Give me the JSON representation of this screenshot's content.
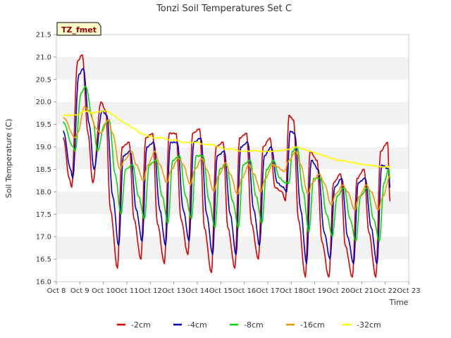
{
  "chart_data": {
    "type": "line",
    "title": "Tonzi Soil Temperatures Set C",
    "xlabel": "Time",
    "ylabel": "Soil Temperature (C)",
    "tag_label": "TZ_fmet",
    "xlim": [
      8,
      23
    ],
    "ylim": [
      16.0,
      21.5
    ],
    "x_ticks": [
      8,
      9,
      10,
      11,
      12,
      13,
      14,
      15,
      16,
      17,
      18,
      19,
      20,
      21,
      22,
      23
    ],
    "x_tick_labels": [
      "Oct 8",
      "Oct 9",
      "Oct 10",
      "Oct 11",
      "Oct 12",
      "Oct 13",
      "Oct 14",
      "Oct 15",
      "Oct 16",
      "Oct 17",
      "Oct 18",
      "Oct 19",
      "Oct 20",
      "Oct 21",
      "Oct 22",
      "Oct 23"
    ],
    "y_ticks": [
      16.0,
      16.5,
      17.0,
      17.5,
      18.0,
      18.5,
      19.0,
      19.5,
      20.0,
      20.5,
      21.0,
      21.5
    ],
    "y_tick_labels": [
      "16.0",
      "16.5",
      "17.0",
      "17.5",
      "18.0",
      "18.5",
      "19.0",
      "19.5",
      "20.0",
      "20.5",
      "21.0",
      "21.5"
    ],
    "grid": "horizontal bands",
    "legend_position": "bottom",
    "series": [
      {
        "name": "-2cm",
        "color": "#dd0000",
        "x": [
          8.3,
          8.55,
          8.65,
          8.9,
          9.1,
          9.35,
          9.55,
          9.9,
          10.1,
          10.3,
          10.6,
          10.8,
          11.1,
          11.3,
          11.6,
          11.8,
          12.1,
          12.3,
          12.6,
          12.8,
          13.1,
          13.3,
          13.6,
          13.8,
          14.1,
          14.3,
          14.6,
          14.8,
          15.1,
          15.3,
          15.6,
          15.8,
          16.1,
          16.3,
          16.6,
          16.8,
          17.1,
          17.3,
          17.6,
          17.75,
          17.9,
          18.1,
          18.3,
          18.6,
          18.8,
          19.1,
          19.3,
          19.6,
          19.8,
          20.1,
          20.3,
          20.6,
          20.8,
          21.1,
          21.3,
          21.6,
          21.8,
          22.1,
          22.2
        ],
        "values": [
          19.2,
          18.3,
          18.1,
          20.9,
          21.05,
          19.3,
          18.2,
          20.0,
          19.8,
          17.6,
          16.3,
          19.0,
          19.1,
          17.4,
          16.5,
          19.2,
          19.3,
          17.3,
          16.4,
          19.3,
          19.3,
          17.4,
          16.6,
          19.3,
          19.4,
          17.2,
          16.2,
          19.0,
          19.1,
          17.2,
          16.3,
          19.2,
          19.3,
          17.3,
          16.5,
          19.0,
          19.2,
          18.1,
          18.0,
          17.8,
          19.7,
          19.6,
          17.4,
          16.1,
          18.9,
          18.7,
          16.9,
          16.1,
          18.2,
          18.4,
          16.8,
          16.1,
          18.3,
          18.5,
          17.1,
          16.1,
          18.9,
          19.1,
          17.8
        ]
      },
      {
        "name": "-4cm",
        "color": "#0000cc",
        "x": [
          8.3,
          8.6,
          8.7,
          8.95,
          9.15,
          9.4,
          9.6,
          9.95,
          10.15,
          10.4,
          10.65,
          10.85,
          11.15,
          11.4,
          11.65,
          11.85,
          12.15,
          12.4,
          12.65,
          12.85,
          13.15,
          13.4,
          13.65,
          13.85,
          14.15,
          14.4,
          14.65,
          14.85,
          15.15,
          15.4,
          15.65,
          15.85,
          16.15,
          16.4,
          16.65,
          16.85,
          17.15,
          17.4,
          17.65,
          17.8,
          17.95,
          18.15,
          18.4,
          18.65,
          18.85,
          19.15,
          19.4,
          19.65,
          19.85,
          20.15,
          20.4,
          20.65,
          20.85,
          21.15,
          21.4,
          21.65,
          21.85,
          22.15,
          22.2
        ],
        "values": [
          19.35,
          18.5,
          18.3,
          20.6,
          20.75,
          19.5,
          18.5,
          19.8,
          19.7,
          17.9,
          16.8,
          18.8,
          18.9,
          17.6,
          16.9,
          19.0,
          19.1,
          17.6,
          16.8,
          19.1,
          19.1,
          17.6,
          16.9,
          19.1,
          19.2,
          17.5,
          16.6,
          18.8,
          18.9,
          17.5,
          16.6,
          19.0,
          19.1,
          17.6,
          16.8,
          18.8,
          19.0,
          18.2,
          18.1,
          18.0,
          19.35,
          19.3,
          17.6,
          16.4,
          18.7,
          18.5,
          17.1,
          16.5,
          18.1,
          18.3,
          17.0,
          16.4,
          18.2,
          18.3,
          17.2,
          16.4,
          18.6,
          18.5,
          18.1
        ]
      },
      {
        "name": "-8cm",
        "color": "#00dd00",
        "x": [
          8.3,
          8.7,
          8.8,
          9.05,
          9.25,
          9.55,
          9.75,
          10.05,
          10.25,
          10.5,
          10.75,
          10.95,
          11.25,
          11.5,
          11.75,
          11.95,
          12.25,
          12.5,
          12.75,
          12.95,
          13.25,
          13.5,
          13.75,
          13.95,
          14.25,
          14.5,
          14.75,
          14.95,
          15.25,
          15.5,
          15.75,
          15.95,
          16.25,
          16.5,
          16.75,
          16.95,
          17.25,
          17.5,
          17.75,
          17.9,
          18.05,
          18.25,
          18.5,
          18.75,
          18.95,
          19.25,
          19.5,
          19.75,
          19.95,
          20.25,
          20.5,
          20.75,
          20.95,
          21.25,
          21.5,
          21.75,
          21.95,
          22.15,
          22.2
        ],
        "values": [
          19.55,
          19.0,
          18.9,
          20.2,
          20.35,
          19.6,
          18.9,
          19.5,
          19.6,
          18.4,
          17.5,
          18.5,
          18.6,
          17.9,
          17.4,
          18.6,
          18.7,
          17.9,
          17.3,
          18.7,
          18.8,
          17.9,
          17.4,
          18.8,
          18.8,
          17.8,
          17.2,
          18.5,
          18.6,
          17.8,
          17.2,
          18.6,
          18.7,
          17.9,
          17.3,
          18.5,
          18.7,
          18.3,
          18.2,
          18.2,
          18.9,
          19.0,
          18.0,
          17.1,
          18.3,
          18.3,
          17.5,
          17.0,
          17.9,
          18.1,
          17.4,
          16.9,
          17.9,
          18.1,
          17.4,
          16.9,
          18.2,
          18.5,
          18.3
        ]
      },
      {
        "name": "-16cm",
        "color": "#ee9900",
        "x": [
          8.3,
          8.8,
          8.9,
          9.2,
          9.4,
          9.7,
          9.9,
          10.2,
          10.4,
          10.7,
          10.9,
          11.2,
          11.4,
          11.7,
          11.9,
          12.2,
          12.4,
          12.7,
          12.9,
          13.2,
          13.4,
          13.7,
          13.9,
          14.2,
          14.4,
          14.7,
          14.9,
          15.2,
          15.4,
          15.7,
          15.9,
          16.2,
          16.4,
          16.7,
          16.9,
          17.2,
          17.4,
          17.7,
          17.9,
          18.2,
          18.4,
          18.7,
          18.9,
          19.2,
          19.4,
          19.7,
          19.9,
          20.2,
          20.4,
          20.7,
          20.9,
          21.2,
          21.4,
          21.7,
          21.9,
          22.2
        ],
        "values": [
          19.65,
          19.2,
          19.3,
          19.9,
          19.8,
          19.4,
          19.3,
          19.6,
          19.3,
          18.5,
          18.7,
          18.9,
          18.6,
          18.25,
          18.6,
          18.9,
          18.6,
          18.2,
          18.5,
          18.75,
          18.6,
          18.15,
          18.5,
          18.75,
          18.5,
          18.0,
          18.35,
          18.65,
          18.4,
          17.95,
          18.3,
          18.6,
          18.4,
          18.0,
          18.3,
          18.6,
          18.55,
          18.45,
          18.7,
          18.9,
          18.6,
          17.95,
          18.2,
          18.4,
          18.2,
          17.7,
          17.95,
          18.15,
          18.0,
          17.6,
          17.9,
          18.15,
          18.0,
          17.6,
          17.9,
          18.35
        ]
      },
      {
        "name": "-32cm",
        "color": "#ffff00",
        "x": [
          8.3,
          8.6,
          8.9,
          9.2,
          9.5,
          9.8,
          10.1,
          10.4,
          10.7,
          11.0,
          11.3,
          11.6,
          11.9,
          12.2,
          12.5,
          12.8,
          13.1,
          13.4,
          13.7,
          14.0,
          14.3,
          14.6,
          14.9,
          15.2,
          15.5,
          15.8,
          16.1,
          16.4,
          16.7,
          17.0,
          17.3,
          17.6,
          17.9,
          18.2,
          18.5,
          18.8,
          19.1,
          19.4,
          19.7,
          20.0,
          20.3,
          20.6,
          20.9,
          21.2,
          21.5,
          21.8,
          22.0,
          22.2
        ],
        "values": [
          19.7,
          19.7,
          19.72,
          19.8,
          19.75,
          19.78,
          19.8,
          19.72,
          19.6,
          19.5,
          19.4,
          19.3,
          19.25,
          19.2,
          19.2,
          19.15,
          19.15,
          19.1,
          19.1,
          19.1,
          19.05,
          19.05,
          19.0,
          18.95,
          18.95,
          18.9,
          18.9,
          18.92,
          18.9,
          18.9,
          18.9,
          18.92,
          18.95,
          19.0,
          18.95,
          18.9,
          18.85,
          18.8,
          18.75,
          18.7,
          18.68,
          18.65,
          18.62,
          18.6,
          18.58,
          18.55,
          18.55,
          18.55
        ]
      }
    ]
  }
}
